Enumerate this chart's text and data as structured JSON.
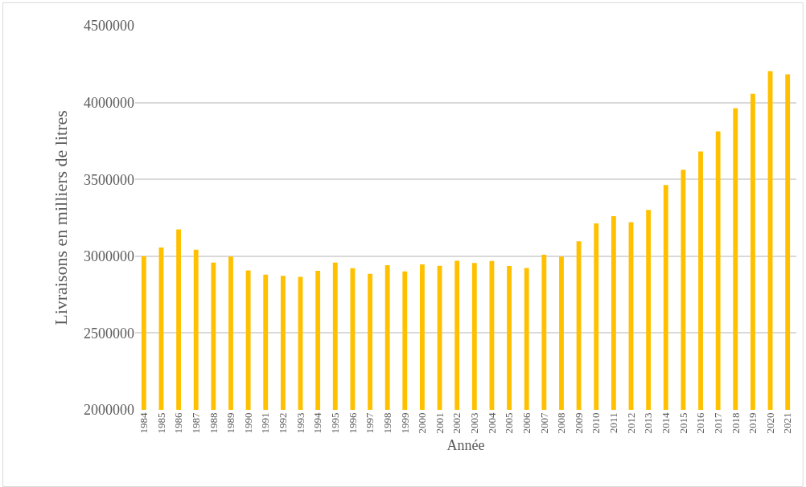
{
  "chart_data": {
    "type": "bar",
    "xlabel": "Année",
    "ylabel": "Livraisons en milliers de litres",
    "categories": [
      "1984",
      "1985",
      "1986",
      "1987",
      "1988",
      "1989",
      "1990",
      "1991",
      "1992",
      "1993",
      "1994",
      "1995",
      "1996",
      "1997",
      "1998",
      "1999",
      "2000",
      "2001",
      "2002",
      "2003",
      "2004",
      "2005",
      "2006",
      "2007",
      "2008",
      "2009",
      "2010",
      "2011",
      "2012",
      "2013",
      "2014",
      "2015",
      "2016",
      "2017",
      "2018",
      "2019",
      "2020",
      "2021"
    ],
    "values": [
      3000000,
      3057000,
      3174000,
      3042000,
      2958000,
      2997000,
      2908000,
      2880000,
      2872000,
      2866000,
      2905000,
      2958000,
      2922000,
      2885000,
      2941000,
      2901000,
      2946000,
      2938000,
      2970000,
      2956000,
      2969000,
      2936000,
      2923000,
      3009000,
      2998000,
      3097000,
      3214000,
      3260000,
      3221000,
      3301000,
      3463000,
      3562000,
      3681000,
      3812000,
      3963000,
      4057000,
      4204000,
      4183000
    ],
    "color": "#ffc000",
    "ylim": [
      2000000,
      4500000
    ],
    "yticks": [
      2000000,
      2500000,
      3000000,
      3500000,
      4000000,
      4500000
    ],
    "grid": "y"
  }
}
